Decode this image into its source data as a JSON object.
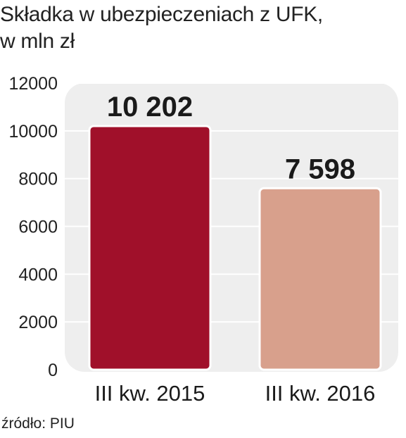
{
  "chart_data": {
    "type": "bar",
    "title": "Składka w ubezpieczeniach z UFK,",
    "subtitle": "w mln zł",
    "categories": [
      "III kw. 2015",
      "III kw. 2016"
    ],
    "values": [
      10202,
      7598
    ],
    "value_labels": [
      "10 202",
      "7 598"
    ],
    "ylim": [
      0,
      12000
    ],
    "yticks": [
      0,
      2000,
      4000,
      6000,
      8000,
      10000,
      12000
    ],
    "grid": true,
    "colors": [
      "#a0102a",
      "#d8a08c"
    ],
    "source": "źródło: PIU"
  }
}
